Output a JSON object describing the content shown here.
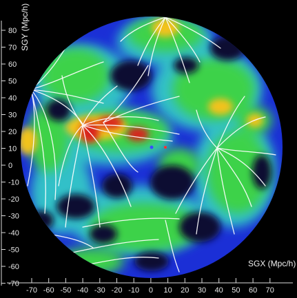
{
  "figure": {
    "y_axis_label": "SGY (Mpc/h)",
    "x_axis_label": "SGX (Mpc/h)",
    "y_ticks": [
      "80",
      "70",
      "60",
      "50",
      "40",
      "30",
      "20",
      "10",
      "0",
      "-10",
      "-20",
      "-30",
      "-40",
      "-50",
      "-60",
      "-70"
    ],
    "x_ticks": [
      "-70",
      "-60",
      "-50",
      "-40",
      "-30",
      "-20",
      "-10",
      "0",
      "10",
      "20",
      "30",
      "40",
      "50",
      "60",
      "70"
    ],
    "colors": {
      "background": "#000000",
      "void": "#0a0a30",
      "low": "#1b2fd6",
      "mid": "#31c0c8",
      "high": "#3dd24a",
      "peak": "#f2c21a",
      "max": "#d8231c",
      "flowlines": "#ffffff",
      "marker_blue": "#3a4dff",
      "marker_red": "#ff3030"
    }
  }
}
